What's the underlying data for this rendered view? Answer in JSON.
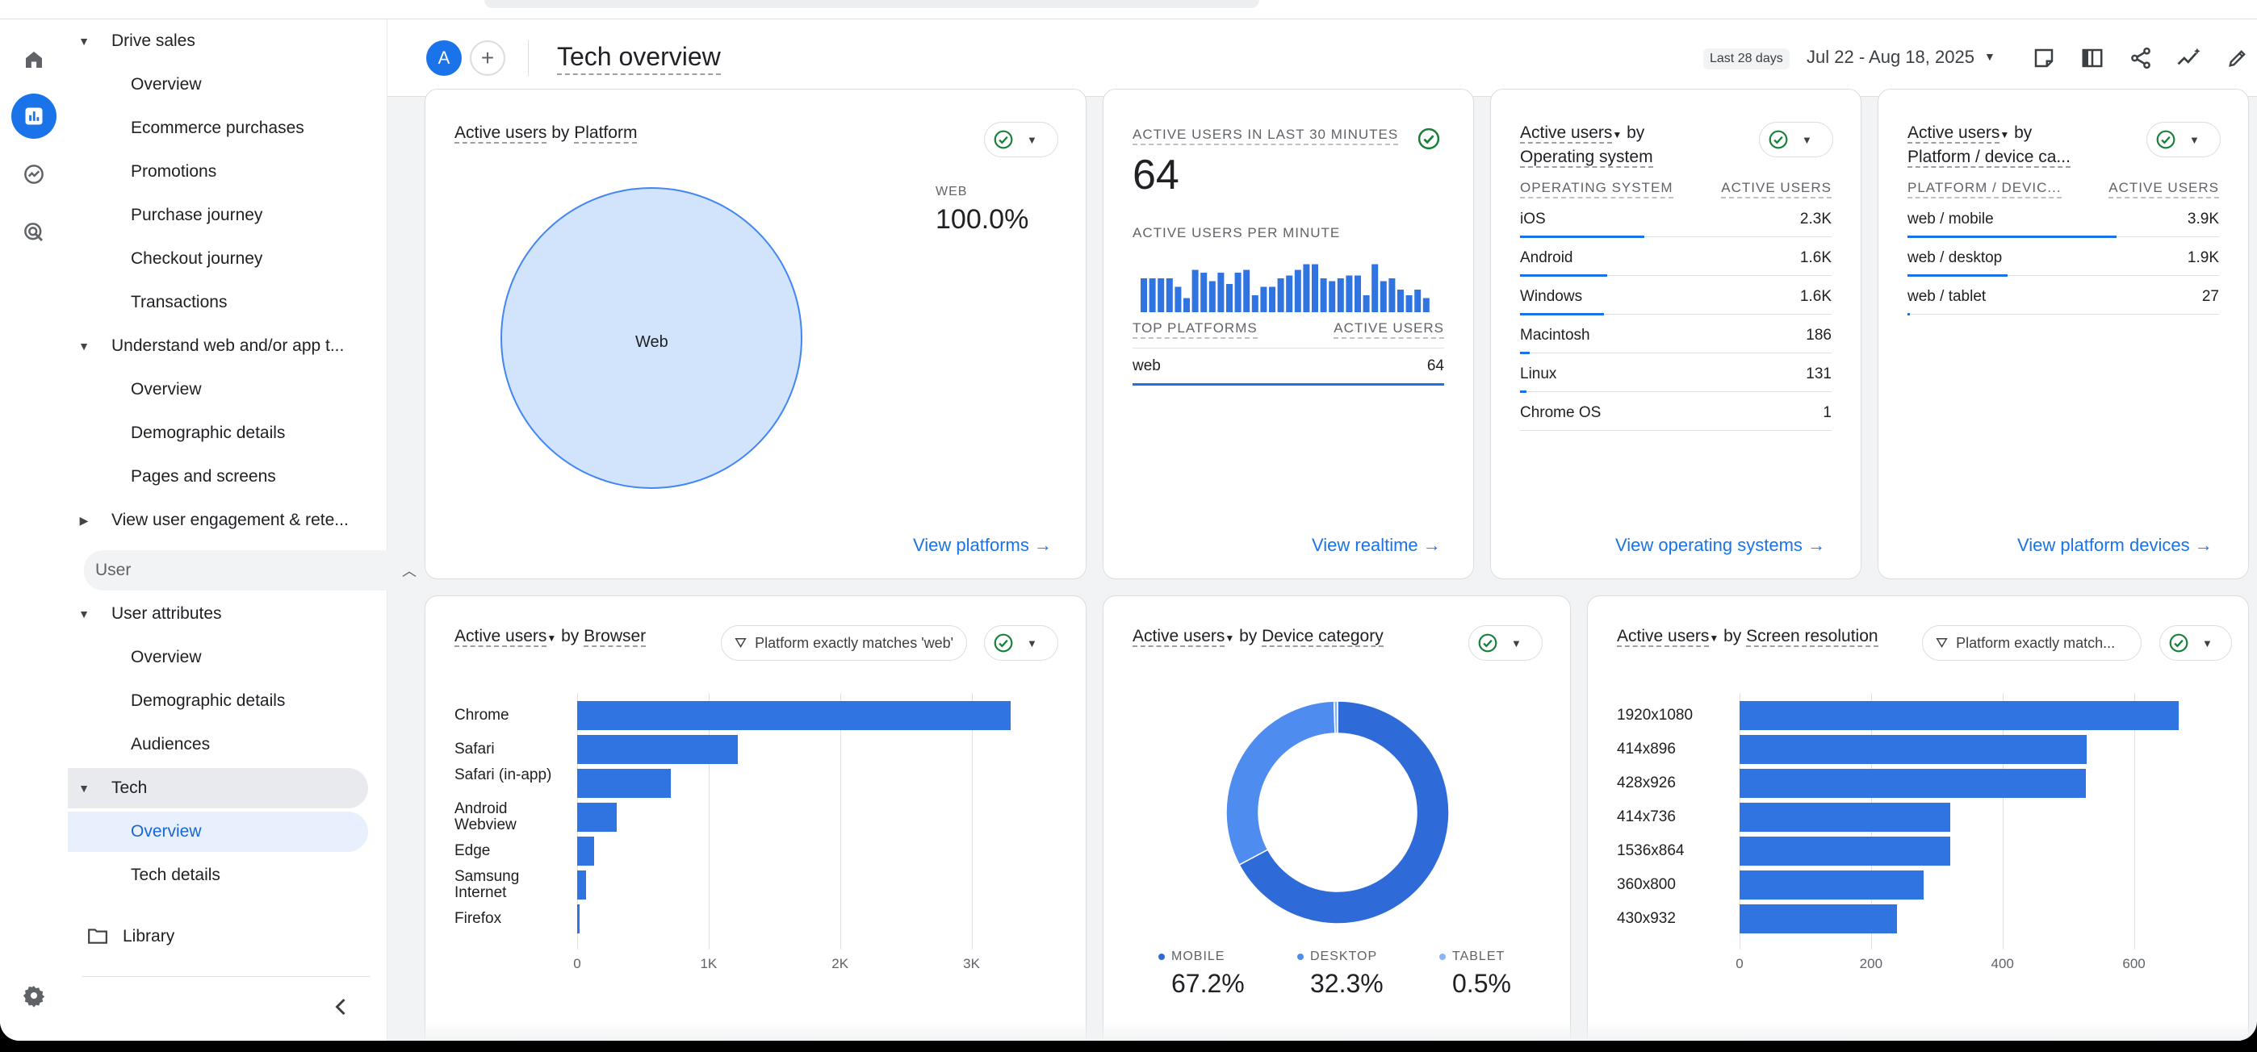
{
  "header": {
    "avatar_letter": "A",
    "title": "Tech overview",
    "range_chip": "Last 28 days",
    "range_value": "Jul 22 - Aug 18, 2025",
    "icons": [
      "report-icon",
      "compare-icon",
      "share-icon",
      "insights-icon",
      "edit-icon"
    ]
  },
  "rail": {
    "icons": [
      "home-icon",
      "reports-icon",
      "explore-icon",
      "advertising-icon",
      "settings-icon"
    ]
  },
  "nav": {
    "drive_sales": "Drive sales",
    "ds_items": [
      "Overview",
      "Ecommerce purchases",
      "Promotions",
      "Purchase journey",
      "Checkout journey",
      "Transactions"
    ],
    "understand": "Understand web and/or app t...",
    "u_items": [
      "Overview",
      "Demographic details",
      "Pages and screens"
    ],
    "engagement": "View user engagement & rete...",
    "user": "User",
    "user_attributes": "User attributes",
    "ua_items": [
      "Overview",
      "Demographic details",
      "Audiences"
    ],
    "tech": "Tech",
    "tech_items": [
      "Overview",
      "Tech details"
    ],
    "library": "Library"
  },
  "platform_card": {
    "title_a": "Active users",
    "title_by": "by",
    "title_b": "Platform",
    "legend_label": "WEB",
    "legend_value": "100.0%",
    "pie_label": "Web",
    "link": "View platforms"
  },
  "realtime_card": {
    "label": "ACTIVE USERS IN LAST 30 MINUTES",
    "value": "64",
    "per_minute": "ACTIVE USERS PER MINUTE",
    "col_a": "TOP PLATFORMS",
    "col_b": "ACTIVE USERS",
    "row_label": "web",
    "row_value": "64",
    "link": "View realtime"
  },
  "os_card": {
    "title_a": "Active users",
    "title_by": "by",
    "title_b": "Operating system",
    "col_a": "OPERATING SYSTEM",
    "col_b": "ACTIVE USERS",
    "rows": [
      {
        "label": "iOS",
        "value": "2.3K",
        "share": 0.4
      },
      {
        "label": "Android",
        "value": "1.6K",
        "share": 0.28
      },
      {
        "label": "Windows",
        "value": "1.6K",
        "share": 0.27
      },
      {
        "label": "Macintosh",
        "value": "186",
        "share": 0.032
      },
      {
        "label": "Linux",
        "value": "131",
        "share": 0.022
      },
      {
        "label": "Chrome OS",
        "value": "1",
        "share": 0
      }
    ],
    "link": "View operating systems"
  },
  "device_card": {
    "title_a": "Active users",
    "title_by": "by",
    "title_b": "Platform / device ca...",
    "col_a": "PLATFORM / DEVIC...",
    "col_b": "ACTIVE USERS",
    "rows": [
      {
        "label": "web / mobile",
        "value": "3.9K",
        "share": 0.67
      },
      {
        "label": "web / desktop",
        "value": "1.9K",
        "share": 0.32
      },
      {
        "label": "web / tablet",
        "value": "27",
        "share": 0.005
      }
    ],
    "link": "View platform devices"
  },
  "browser_card": {
    "title_a": "Active users",
    "title_by": "by",
    "title_b": "Browser",
    "filter": "Platform exactly matches 'web'"
  },
  "category_card": {
    "title_a": "Active users",
    "title_by": "by",
    "title_b": "Device category",
    "legend": [
      {
        "label": "MOBILE",
        "value": "67.2%",
        "color": "#2f6bd8"
      },
      {
        "label": "DESKTOP",
        "value": "32.3%",
        "color": "#4f8cf0"
      },
      {
        "label": "TABLET",
        "value": "0.5%",
        "color": "#8ab4f8"
      }
    ]
  },
  "resolution_card": {
    "title_a": "Active users",
    "title_by": "by",
    "title_b": "Screen resolution",
    "filter": "Platform exactly match..."
  },
  "chart_data": [
    {
      "type": "pie",
      "title": "Active users by Platform",
      "categories": [
        "Web"
      ],
      "values": [
        100.0
      ]
    },
    {
      "type": "bar",
      "title": "Active users per minute",
      "values": [
        24,
        24,
        24,
        24,
        18,
        10,
        30,
        28,
        22,
        28,
        20,
        28,
        30,
        12,
        18,
        18,
        24,
        26,
        30,
        34,
        34,
        24,
        22,
        24,
        26,
        26,
        12,
        34,
        22,
        24,
        16,
        12,
        16,
        10
      ]
    },
    {
      "type": "bar",
      "orientation": "horizontal",
      "title": "Active users by Browser",
      "categories": [
        "Chrome",
        "Safari",
        "Safari (in-app)",
        "Android Webview",
        "Edge",
        "Samsung Internet",
        "Firefox"
      ],
      "values": [
        3300,
        1220,
        710,
        300,
        130,
        70,
        20
      ],
      "xlim": [
        0,
        3500
      ],
      "xticks": [
        "0",
        "1K",
        "2K",
        "3K"
      ],
      "grid": true
    },
    {
      "type": "pie",
      "donut": true,
      "title": "Active users by Device category",
      "categories": [
        "MOBILE",
        "DESKTOP",
        "TABLET"
      ],
      "values": [
        67.2,
        32.3,
        0.5
      ]
    },
    {
      "type": "bar",
      "orientation": "horizontal",
      "title": "Active users by Screen resolution",
      "categories": [
        "1920x1080",
        "414x896",
        "428x926",
        "414x736",
        "1536x864",
        "360x800",
        "430x932"
      ],
      "values": [
        668,
        528,
        527,
        320,
        320,
        280,
        240
      ],
      "xlim": [
        0,
        700
      ],
      "xticks": [
        "0",
        "200",
        "400",
        "600"
      ],
      "grid": true
    }
  ],
  "colors": {
    "accent": "#1a73e8",
    "bar": "#3074e1",
    "pie_fill": "#d2e3fc",
    "pie_stroke": "#4285f4",
    "check": "#188038"
  }
}
